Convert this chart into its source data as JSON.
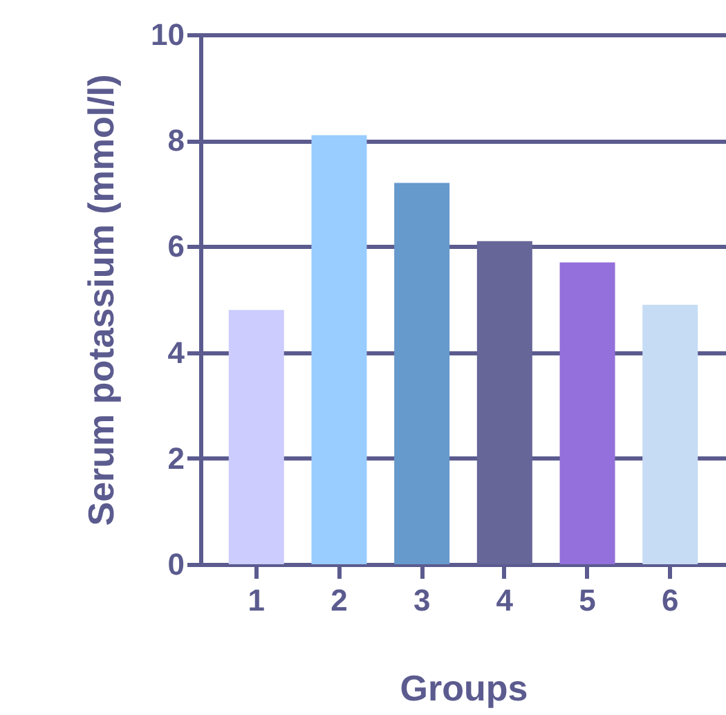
{
  "chart_data": {
    "type": "bar",
    "xlabel": "Groups",
    "ylabel": "Serum potassium (mmol/l)",
    "categories": [
      "1",
      "2",
      "3",
      "4",
      "5",
      "6"
    ],
    "values": [
      4.8,
      8.1,
      7.2,
      6.1,
      5.7,
      4.9
    ],
    "colors": [
      "#ccccff",
      "#99ccff",
      "#6699cc",
      "#666699",
      "#9370db",
      "#c6dcf5"
    ],
    "ylim": [
      0,
      10
    ],
    "yticks": [
      0,
      2,
      4,
      6,
      8,
      10
    ],
    "grid": "y"
  }
}
